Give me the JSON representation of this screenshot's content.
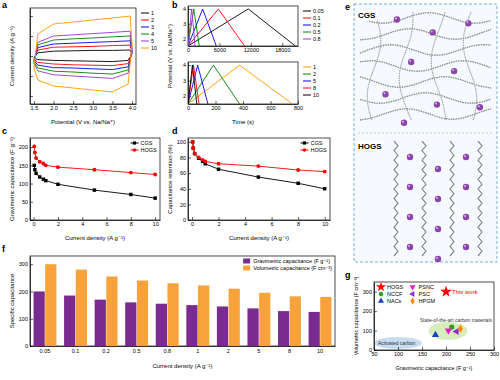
{
  "chart_data": [
    {
      "type": "line",
      "title": "a",
      "xlabel": "Potential (V vs. Na/Na⁺)",
      "ylabel": "Current density (A g⁻¹)",
      "x": [
        1.5,
        1.6,
        2.0,
        2.5,
        3.0,
        3.5,
        3.95,
        4.0,
        3.9,
        3.5,
        3.0,
        2.5,
        2.0,
        1.6,
        1.5
      ],
      "series": [
        {
          "name": "1",
          "color": "#000000",
          "line_style": "solid",
          "values": [
            -0.05,
            0.08,
            0.12,
            0.13,
            0.14,
            0.14,
            0.15,
            0.05,
            -0.11,
            -0.14,
            -0.13,
            -0.12,
            -0.11,
            -0.09,
            -0.05
          ]
        },
        {
          "name": "2",
          "color": "#ff0000",
          "line_style": "solid",
          "values": [
            -0.08,
            0.15,
            0.22,
            0.23,
            0.24,
            0.26,
            0.27,
            0.08,
            -0.19,
            -0.24,
            -0.23,
            -0.22,
            -0.2,
            -0.16,
            -0.08
          ]
        },
        {
          "name": "3",
          "color": "#0000ff",
          "line_style": "solid",
          "values": [
            -0.11,
            0.21,
            0.3,
            0.32,
            0.34,
            0.36,
            0.38,
            0.11,
            -0.27,
            -0.34,
            -0.32,
            -0.3,
            -0.29,
            -0.23,
            -0.11
          ]
        },
        {
          "name": "4",
          "color": "#008000",
          "line_style": "solid",
          "values": [
            -0.15,
            0.28,
            0.4,
            0.43,
            0.45,
            0.48,
            0.5,
            0.15,
            -0.35,
            -0.45,
            -0.43,
            -0.4,
            -0.38,
            -0.3,
            -0.15
          ]
        },
        {
          "name": "5",
          "color": "#9933cc",
          "line_style": "solid",
          "values": [
            -0.19,
            0.34,
            0.5,
            0.53,
            0.56,
            0.59,
            0.62,
            0.19,
            -0.43,
            -0.56,
            -0.53,
            -0.5,
            -0.47,
            -0.37,
            -0.19
          ]
        },
        {
          "name": "10",
          "color": "#ff9900",
          "line_style": "solid",
          "values": [
            -0.3,
            0.55,
            0.8,
            0.85,
            0.9,
            0.95,
            1.0,
            0.3,
            -0.7,
            -0.9,
            -0.85,
            -0.8,
            -0.75,
            -0.6,
            -0.3
          ]
        }
      ],
      "xlim": [
        1.4,
        4.1
      ],
      "xticks": [
        1.5,
        {
          "value": 2,
          "label": "2.0"
        },
        2.5,
        {
          "value": 3,
          "label": "3.0"
        },
        3.5,
        {
          "value": 4,
          "label": "4.0"
        }
      ],
      "ylim": [
        -1.2,
        1.2
      ],
      "yticks": [
        -1,
        -0.5,
        0,
        0.5,
        1
      ],
      "tick_labels": "x",
      "legend": "right"
    },
    {
      "type": "line",
      "title": "b",
      "ylabel": "Potential (V vs. Na/Na⁺)",
      "series": [
        {
          "name": "0.05",
          "color": "#000000",
          "line_style": "solid",
          "x": [
            0,
            11500,
            20500
          ],
          "values": [
            1.5,
            4.0,
            1.5
          ]
        },
        {
          "name": "0.1",
          "color": "#ff0000",
          "line_style": "solid",
          "x": [
            0,
            5800,
            10800
          ],
          "values": [
            1.5,
            4.0,
            1.5
          ]
        },
        {
          "name": "0.2",
          "color": "#0000ff",
          "line_style": "solid",
          "x": [
            0,
            2800,
            5400
          ],
          "values": [
            1.5,
            4.0,
            1.5
          ]
        },
        {
          "name": "0.5",
          "color": "#008000",
          "line_style": "solid",
          "x": [
            0,
            1100,
            2150
          ],
          "values": [
            1.5,
            4.0,
            1.5
          ]
        },
        {
          "name": "0.8",
          "color": "#9933cc",
          "line_style": "solid",
          "x": [
            0,
            700,
            1350
          ],
          "values": [
            1.5,
            4.0,
            1.5
          ]
        }
      ],
      "xlim": [
        0,
        21000
      ],
      "xticks": [
        0,
        6000,
        12000,
        18000
      ],
      "ylim": [
        1.5,
        4.2
      ],
      "yticks": [
        2,
        3,
        4
      ],
      "legend": "right"
    },
    {
      "type": "line",
      "xlabel": "Time (s)",
      "series": [
        {
          "name": "1",
          "color": "#ff9900",
          "line_style": "solid",
          "x": [
            0,
            375,
            760
          ],
          "values": [
            1.5,
            4.0,
            1.5
          ]
        },
        {
          "name": "2",
          "color": "#008000",
          "line_style": "solid",
          "x": [
            0,
            185,
            375
          ],
          "values": [
            1.5,
            4.0,
            1.5
          ]
        },
        {
          "name": "5",
          "color": "#0000ff",
          "line_style": "solid",
          "x": [
            0,
            70,
            145
          ],
          "values": [
            1.5,
            4.0,
            1.5
          ]
        },
        {
          "name": "8",
          "color": "#ff0000",
          "line_style": "solid",
          "x": [
            0,
            40,
            80
          ],
          "values": [
            1.5,
            4.0,
            1.5
          ]
        },
        {
          "name": "10",
          "color": "#000000",
          "line_style": "solid",
          "x": [
            0,
            32,
            64
          ],
          "values": [
            1.5,
            4.0,
            1.5
          ]
        }
      ],
      "xlim": [
        0,
        800
      ],
      "xticks": [
        0,
        200,
        400,
        600,
        800
      ],
      "ylim": [
        1.5,
        4.2
      ],
      "yticks": [
        2,
        3,
        4
      ],
      "legend": "right"
    },
    {
      "type": "line",
      "title": "c",
      "xlabel": "Current density (A g⁻¹)",
      "ylabel": "Gravimetric capacitance (F g⁻¹)",
      "x": [
        0.05,
        0.1,
        0.2,
        0.5,
        0.8,
        1,
        2,
        5,
        8,
        10
      ],
      "series": [
        {
          "name": "CGS",
          "color": "#000000",
          "marker": "square",
          "line_style": "solid",
          "values": [
            150,
            138,
            128,
            118,
            112,
            108,
            98,
            82,
            70,
            60
          ]
        },
        {
          "name": "HOGS",
          "color": "#ff0000",
          "marker": "circle",
          "line_style": "solid",
          "values": [
            202,
            185,
            170,
            160,
            155,
            150,
            145,
            138,
            130,
            125
          ]
        }
      ],
      "xlim": [
        -0.3,
        10.4
      ],
      "xticks": [
        0,
        2,
        4,
        6,
        8,
        10
      ],
      "ylim": [
        0,
        225
      ],
      "yticks": [
        0,
        50,
        100,
        150,
        200
      ],
      "legend": "top-right"
    },
    {
      "type": "line",
      "title": "d",
      "xlabel": "Current density (A g⁻¹)",
      "ylabel": "Capacitance retention (%)",
      "x": [
        0.05,
        0.1,
        0.2,
        0.5,
        0.8,
        1,
        2,
        5,
        8,
        10
      ],
      "series": [
        {
          "name": "CGS",
          "color": "#000000",
          "marker": "square",
          "line_style": "solid",
          "values": [
            100,
            92,
            85,
            79,
            75,
            72,
            65,
            55,
            47,
            40
          ]
        },
        {
          "name": "HOGS",
          "color": "#ff0000",
          "marker": "circle",
          "line_style": "solid",
          "values": [
            100,
            92,
            85,
            80,
            77,
            75,
            72,
            69,
            64,
            62
          ]
        }
      ],
      "xlim": [
        -0.3,
        10.4
      ],
      "xticks": [
        0,
        2,
        4,
        6,
        8,
        10
      ],
      "ylim": [
        0,
        105
      ],
      "yticks": [
        0,
        20,
        40,
        60,
        80,
        100
      ],
      "legend": "top-right"
    },
    {
      "type": "diagram",
      "title": "e",
      "labels": [
        "CGS",
        "HOGS"
      ]
    },
    {
      "type": "bar",
      "title": "f",
      "xlabel": "Current density (A g⁻¹)",
      "ylabel": "Specific capacitance",
      "categories": [
        "0.05",
        "0.1",
        "0.2",
        "0.5",
        "0.8",
        "1",
        "2",
        "5",
        "8",
        "10"
      ],
      "series": [
        {
          "name": "Gravimetric capacitance (F g⁻¹)",
          "color": "#7a2b8f",
          "values": [
            200,
            185,
            170,
            160,
            155,
            150,
            145,
            138,
            128,
            125
          ]
        },
        {
          "name": "Volumetric capacitance (F cm⁻³)",
          "color": "#f7a23b",
          "values": [
            300,
            280,
            255,
            240,
            230,
            222,
            210,
            195,
            182,
            180
          ]
        }
      ],
      "ylim": [
        0,
        330
      ],
      "yticks": [
        0,
        100,
        200,
        300
      ],
      "legend": "top-right"
    },
    {
      "type": "scatter",
      "title": "g",
      "xlabel": "Gravimetric capacitance (F g⁻¹)",
      "ylabel": "Volumetric capacitance (F cm⁻³)",
      "series": [
        {
          "name": "HOGS",
          "color": "#ff0000",
          "marker": "star",
          "x": [
            200
          ],
          "values": [
            300
          ]
        },
        {
          "name": "NCCF",
          "color": "#2ca02c",
          "marker": "circle",
          "x": [
            212
          ],
          "values": [
            118
          ]
        },
        {
          "name": "NACs",
          "color": "#1f3fbf",
          "marker": "triangle",
          "x": [
            178
          ],
          "values": [
            78
          ]
        },
        {
          "name": "PSNC",
          "color": "#e020c0",
          "marker": "triangle-down",
          "x": [
            205
          ],
          "values": [
            100
          ]
        },
        {
          "name": "PSC",
          "color": "#8a2be2",
          "marker": "triangle-left",
          "x": [
            222
          ],
          "values": [
            95
          ]
        },
        {
          "name": "HPGM",
          "color": "#ff8c00",
          "marker": "diamond",
          "x": [
            230
          ],
          "values": [
            110
          ]
        }
      ],
      "annotations": [
        "This work",
        "State-of-the-art carbon materials",
        "Activated carbon"
      ],
      "xlim": [
        50,
        300
      ],
      "xticks": [
        50,
        100,
        150,
        200,
        250,
        300
      ],
      "ylim": [
        0,
        350
      ],
      "yticks": [
        0,
        100,
        200,
        300
      ],
      "legend": "top-left"
    }
  ]
}
